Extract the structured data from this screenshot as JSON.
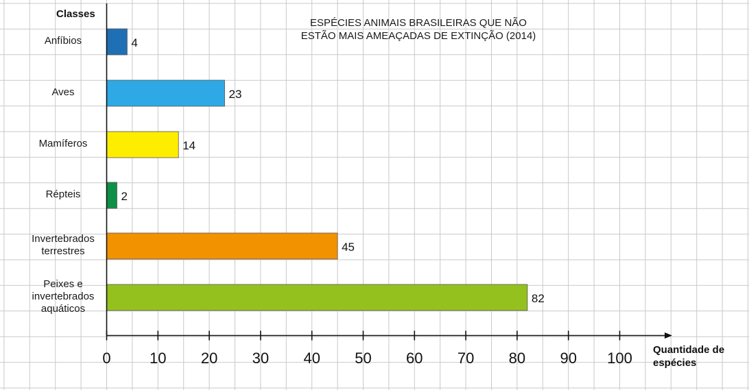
{
  "chart_data": {
    "type": "bar",
    "orientation": "horizontal",
    "title_line1": "ESPÉCIES ANIMAIS BRASILEIRAS QUE NÃO",
    "title_line2": "ESTÃO MAIS AMEAÇADAS DE EXTINÇÃO (2014)",
    "ylabel": "Classes",
    "xlabel_line1": "Quantidade de",
    "xlabel_line2": "espécies",
    "xlim": [
      0,
      110
    ],
    "ticks": [
      0,
      10,
      20,
      30,
      40,
      50,
      60,
      70,
      80,
      90,
      100
    ],
    "grid": true,
    "categories": [
      {
        "lines": [
          "Anfíbios"
        ],
        "value": 4,
        "color": "#1f6fb5"
      },
      {
        "lines": [
          "Aves"
        ],
        "value": 23,
        "color": "#2ea9e6"
      },
      {
        "lines": [
          "Mamíferos"
        ],
        "value": 14,
        "color": "#ffed00"
      },
      {
        "lines": [
          "Répteis"
        ],
        "value": 2,
        "color": "#0e9146"
      },
      {
        "lines": [
          "Invertebrados",
          "terrestres"
        ],
        "value": 45,
        "color": "#f39200"
      },
      {
        "lines": [
          "Peixes e",
          "invertebrados",
          "aquáticos"
        ],
        "value": 82,
        "color": "#95c11f"
      }
    ]
  }
}
